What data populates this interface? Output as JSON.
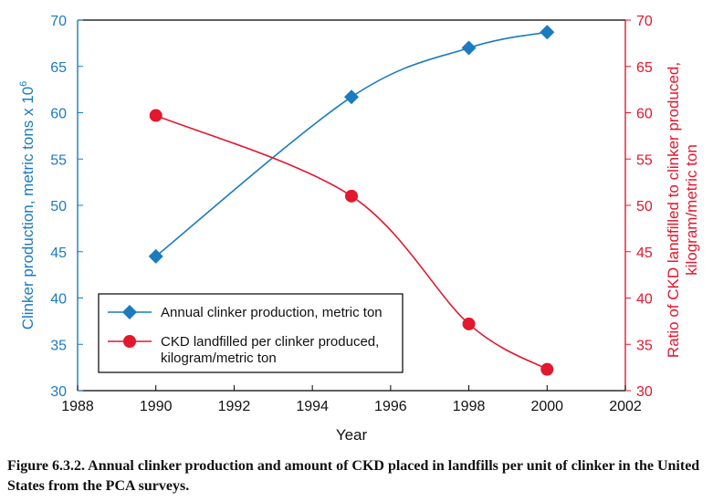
{
  "chart_data": {
    "type": "line",
    "x_axis": {
      "label": "Year",
      "range": [
        1988,
        2002
      ],
      "ticks": [
        1988,
        1990,
        1992,
        1994,
        1996,
        1998,
        2000,
        2002
      ]
    },
    "y_left": {
      "label_main": "Clinker production, metric tons x 10",
      "label_sup": "6",
      "range": [
        30,
        70
      ],
      "ticks": [
        30,
        35,
        40,
        45,
        50,
        55,
        60,
        65,
        70
      ],
      "color": "#1a7bbf"
    },
    "y_right": {
      "label_line1": "Ratio of CKD landfilled to clinker produced,",
      "label_line2": "kilogram/metric ton",
      "range": [
        30,
        70
      ],
      "ticks": [
        30,
        35,
        40,
        45,
        50,
        55,
        60,
        65,
        70
      ],
      "color": "#e3172d"
    },
    "series": [
      {
        "name": "Annual clinker production, metric ton",
        "marker": "diamond",
        "color": "#1a7bbf",
        "axis": "left",
        "x": [
          1990,
          1995,
          1998,
          2000
        ],
        "y": [
          44.5,
          61.7,
          67.0,
          68.7
        ]
      },
      {
        "name": "CKD landfilled per clinker produced,",
        "name_line2": "kilogram/metric ton",
        "marker": "circle",
        "color": "#e3172d",
        "axis": "right",
        "x": [
          1990,
          1995,
          1998,
          2000
        ],
        "y": [
          59.7,
          51.0,
          37.2,
          32.3
        ]
      }
    ],
    "grid": false,
    "legend_position": "lower-left"
  },
  "caption": "Figure 6.3.2. Annual clinker production and amount of CKD placed in landfills per unit of clinker in the United States from the PCA surveys."
}
